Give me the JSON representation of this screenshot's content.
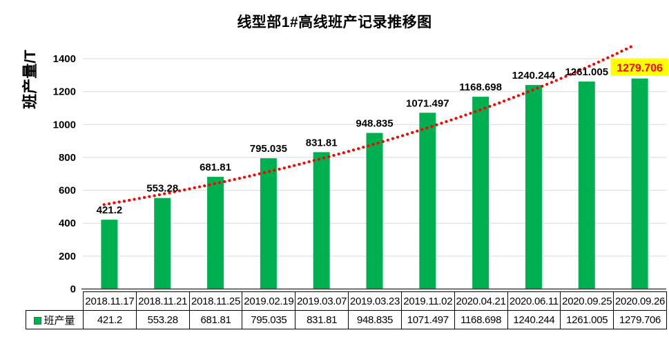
{
  "colors": {
    "bar": "#00B050",
    "bar_legend_border": "#17823E",
    "trend": "#FF0000",
    "gridline": "#D9D9D9",
    "axis": "#404040",
    "label_text": "#000000",
    "highlight_bg": "#FFFF00",
    "highlight_text": "#FF0000"
  },
  "chart_data": {
    "type": "bar",
    "title": "线型部1#高线班产记录推移图",
    "ylabel": "班产量/T",
    "xlabel": "",
    "categories": [
      "2018.11.17",
      "2018.11.21",
      "2018.11.25",
      "2019.02.19",
      "2019.03.07",
      "2019.03.23",
      "2019.11.02",
      "2020.04.21",
      "2020.06.11",
      "2020.09.25",
      "2020.09.26"
    ],
    "series": [
      {
        "name": "班产量",
        "values": [
          421.2,
          553.28,
          681.81,
          795.035,
          831.81,
          948.835,
          1071.497,
          1168.698,
          1240.244,
          1261.005,
          1279.706
        ],
        "labels": [
          "421.2",
          "553.28",
          "681.81",
          "795.035",
          "831.81",
          "948.835",
          "1071.497",
          "1168.698",
          "1240.244",
          "1261.005",
          "1279.706"
        ]
      }
    ],
    "ylim": [
      0,
      1500
    ],
    "yticks": [
      0,
      200,
      400,
      600,
      800,
      1000,
      1200,
      1400
    ],
    "grid": true,
    "legend_position": "data-table-left",
    "data_labels": true,
    "highlight": {
      "index": 10,
      "background": "#FFFF00",
      "text_color": "#FF0000"
    },
    "trendline": {
      "series": "班产量",
      "fit": "exponential",
      "style": "dotted",
      "color": "#FF0000"
    }
  }
}
